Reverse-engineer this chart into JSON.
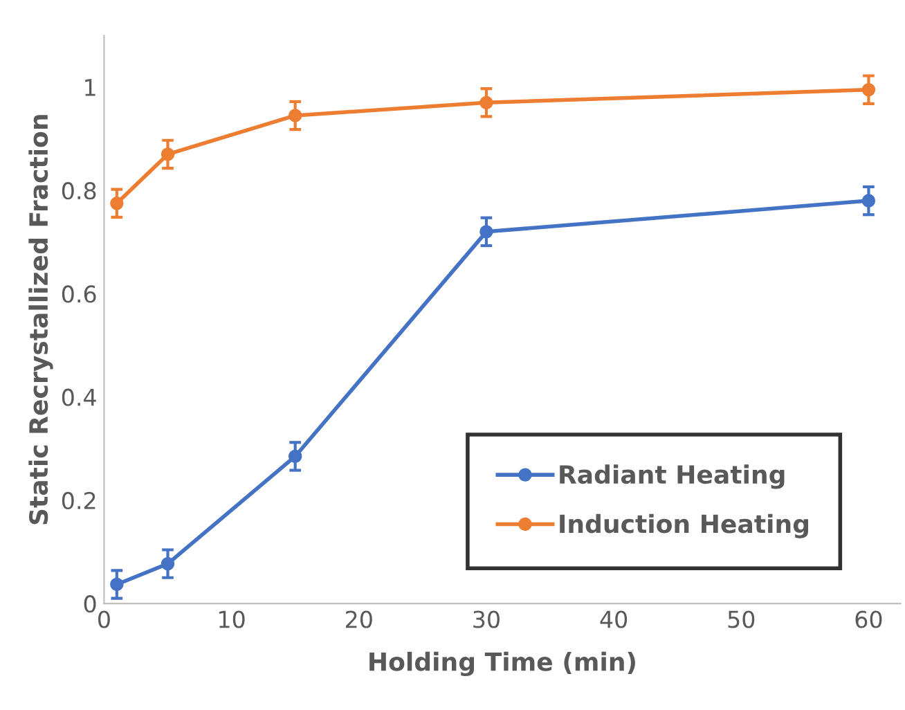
{
  "chart_data": {
    "type": "line",
    "xlabel": "Holding Time (min)",
    "ylabel": "Static Recrystallized Fraction",
    "x": [
      1,
      5,
      15,
      30,
      60
    ],
    "series": [
      {
        "name": "Radiant Heating",
        "color": "#4472c4",
        "values": [
          0.037,
          0.077,
          0.285,
          0.72,
          0.78
        ],
        "errors": [
          0.027,
          0.027,
          0.027,
          0.027,
          0.027
        ]
      },
      {
        "name": "Induction Heating",
        "color": "#ed7d31",
        "values": [
          0.775,
          0.87,
          0.945,
          0.97,
          0.995
        ],
        "errors": [
          0.027,
          0.027,
          0.027,
          0.027,
          0.027
        ]
      }
    ],
    "xlim": [
      0,
      62.5
    ],
    "xticks": [
      0,
      10,
      20,
      30,
      40,
      50,
      60
    ],
    "ylim": [
      0,
      1.1
    ],
    "yticks": [
      0,
      0.2,
      0.4,
      0.6,
      0.8,
      1
    ],
    "grid": false,
    "legend": "bottom right",
    "marker": "circle",
    "line_style": "solid"
  }
}
